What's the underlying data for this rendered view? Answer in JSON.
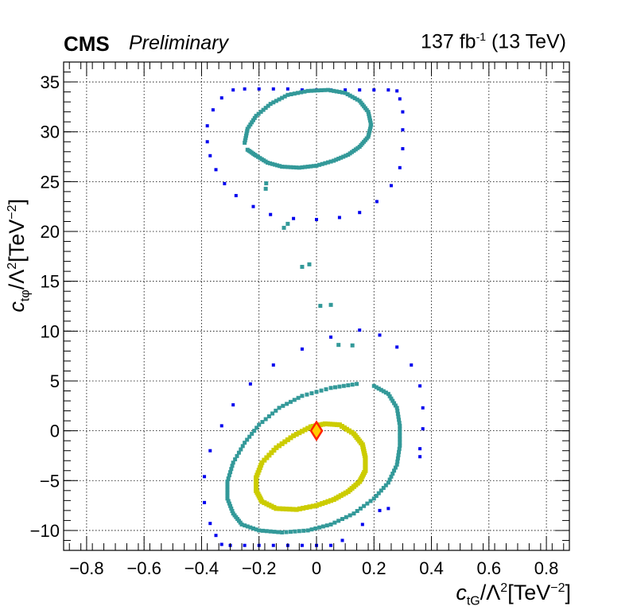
{
  "header": {
    "experiment": "CMS",
    "status": "Preliminary",
    "lumi_value": "137 fb",
    "lumi_exp": "-1",
    "energy": " (13 TeV)"
  },
  "axes": {
    "x_label_main": "c",
    "x_label_sub": "tG",
    "x_label_mid": "/Λ",
    "x_label_pow": "2",
    "x_label_unit": "[TeV",
    "x_label_unit_exp": "−2",
    "x_label_close": "]",
    "y_label_main": "c",
    "y_label_sub": "tφ",
    "y_label_mid": "/Λ",
    "y_label_pow": "2",
    "y_label_unit": "[TeV",
    "y_label_unit_exp": "−2",
    "y_label_close": "]"
  },
  "chart_data": {
    "type": "scatter",
    "xlim": [
      -0.88,
      0.88
    ],
    "ylim": [
      -12,
      37
    ],
    "x_ticks": [
      -0.8,
      -0.6,
      -0.4,
      -0.2,
      0,
      0.2,
      0.4,
      0.6,
      0.8
    ],
    "x_tick_labels": [
      "−0.8",
      "−0.6",
      "−0.4",
      "−0.2",
      "0",
      "0.2",
      "0.4",
      "0.6",
      "0.8"
    ],
    "y_ticks": [
      -10,
      -5,
      0,
      5,
      10,
      15,
      20,
      25,
      30,
      35
    ],
    "y_tick_labels": [
      "−10",
      "−5",
      "0",
      "5",
      "10",
      "15",
      "20",
      "25",
      "30",
      "35"
    ],
    "grid": true,
    "colors": {
      "outer_contour": "#0000ee",
      "middle_contour": "#339999",
      "inner_contour": "#cccc00",
      "best_fit_fill": "#ffcc00",
      "best_fit_edge": "#ff2200"
    },
    "series": [
      {
        "kind": "outer",
        "points": [
          [
            -0.29,
            34.2
          ],
          [
            -0.25,
            34.3
          ],
          [
            -0.2,
            34.3
          ],
          [
            -0.15,
            34.3
          ],
          [
            -0.1,
            34.3
          ],
          [
            -0.05,
            34.2
          ],
          [
            0.0,
            34.2
          ],
          [
            0.05,
            34.2
          ],
          [
            0.1,
            34.2
          ],
          [
            0.15,
            34.2
          ],
          [
            0.2,
            34.2
          ],
          [
            0.25,
            34.2
          ],
          [
            0.28,
            34.1
          ],
          [
            -0.33,
            33.4
          ],
          [
            -0.36,
            32.2
          ],
          [
            -0.38,
            30.6
          ],
          [
            -0.38,
            29.0
          ],
          [
            -0.37,
            27.6
          ],
          [
            -0.35,
            26.2
          ],
          [
            -0.32,
            24.8
          ],
          [
            -0.28,
            23.6
          ],
          [
            -0.22,
            22.5
          ],
          [
            -0.16,
            21.7
          ],
          [
            -0.08,
            21.3
          ],
          [
            0.0,
            21.2
          ],
          [
            0.08,
            21.4
          ],
          [
            0.15,
            21.9
          ],
          [
            0.21,
            23.0
          ],
          [
            0.26,
            24.6
          ],
          [
            0.29,
            26.4
          ],
          [
            0.3,
            28.3
          ],
          [
            0.3,
            30.2
          ],
          [
            0.3,
            32.0
          ],
          [
            0.29,
            33.3
          ],
          [
            0.15,
            10.1
          ],
          [
            0.05,
            9.4
          ],
          [
            -0.05,
            8.2
          ],
          [
            -0.15,
            6.6
          ],
          [
            -0.23,
            4.7
          ],
          [
            -0.29,
            2.6
          ],
          [
            -0.33,
            0.5
          ],
          [
            -0.37,
            -2.0
          ],
          [
            -0.39,
            -4.6
          ],
          [
            -0.39,
            -7.2
          ],
          [
            -0.37,
            -9.3
          ],
          [
            -0.35,
            -10.5
          ],
          [
            -0.33,
            -11.4
          ],
          [
            -0.3,
            -11.5
          ],
          [
            -0.25,
            -11.5
          ],
          [
            -0.2,
            -11.5
          ],
          [
            -0.15,
            -11.5
          ],
          [
            -0.1,
            -11.5
          ],
          [
            -0.05,
            -11.5
          ],
          [
            0.0,
            -11.5
          ],
          [
            0.05,
            -11.5
          ],
          [
            0.09,
            -11.0
          ],
          [
            0.16,
            -9.4
          ],
          [
            0.22,
            -8.0
          ],
          [
            0.25,
            -7.8
          ],
          [
            0.22,
            9.6
          ],
          [
            0.28,
            8.4
          ],
          [
            0.33,
            6.6
          ],
          [
            0.36,
            4.5
          ],
          [
            0.37,
            2.3
          ],
          [
            0.37,
            0.2
          ],
          [
            0.36,
            -1.8
          ],
          [
            0.36,
            -2.6
          ]
        ]
      },
      {
        "kind": "middle",
        "points": [
          [
            -0.25,
            28.9
          ],
          [
            -0.24,
            30.3
          ],
          [
            -0.21,
            31.6
          ],
          [
            -0.16,
            32.8
          ],
          [
            -0.1,
            33.7
          ],
          [
            -0.03,
            34.1
          ],
          [
            0.04,
            34.2
          ],
          [
            0.1,
            33.9
          ],
          [
            0.15,
            33.1
          ],
          [
            0.18,
            32.0
          ],
          [
            0.19,
            30.7
          ],
          [
            0.18,
            29.5
          ],
          [
            0.15,
            28.5
          ],
          [
            0.11,
            27.7
          ],
          [
            0.06,
            27.1
          ],
          [
            0.0,
            26.6
          ],
          [
            -0.06,
            26.4
          ],
          [
            -0.12,
            26.5
          ],
          [
            -0.17,
            26.9
          ],
          [
            -0.21,
            27.6
          ],
          [
            -0.24,
            28.2
          ],
          [
            0.14,
            4.7
          ],
          [
            0.05,
            4.3
          ],
          [
            -0.05,
            3.5
          ],
          [
            -0.13,
            2.3
          ],
          [
            -0.2,
            0.6
          ],
          [
            -0.25,
            -1.2
          ],
          [
            -0.29,
            -3.2
          ],
          [
            -0.31,
            -5.1
          ],
          [
            -0.31,
            -6.8
          ],
          [
            -0.29,
            -8.3
          ],
          [
            -0.26,
            -9.4
          ],
          [
            -0.2,
            -10.0
          ],
          [
            -0.12,
            -10.2
          ],
          [
            -0.03,
            -10.0
          ],
          [
            0.05,
            -9.4
          ],
          [
            0.13,
            -8.3
          ],
          [
            0.2,
            -6.8
          ],
          [
            0.25,
            -5.2
          ],
          [
            0.28,
            -3.4
          ],
          [
            0.29,
            -1.5
          ],
          [
            0.29,
            0.5
          ],
          [
            0.28,
            2.3
          ],
          [
            0.25,
            3.7
          ],
          [
            0.2,
            4.5
          ]
        ]
      },
      {
        "kind": "inner",
        "points": [
          [
            -0.02,
            0.4
          ],
          [
            -0.08,
            -0.5
          ],
          [
            -0.14,
            -1.7
          ],
          [
            -0.19,
            -3.2
          ],
          [
            -0.21,
            -4.7
          ],
          [
            -0.21,
            -6.0
          ],
          [
            -0.19,
            -7.1
          ],
          [
            -0.14,
            -7.8
          ],
          [
            -0.07,
            -7.9
          ],
          [
            0.0,
            -7.5
          ],
          [
            0.06,
            -6.9
          ],
          [
            0.11,
            -6.1
          ],
          [
            0.15,
            -5.1
          ],
          [
            0.17,
            -4.0
          ],
          [
            0.17,
            -2.7
          ],
          [
            0.16,
            -1.4
          ],
          [
            0.13,
            -0.3
          ],
          [
            0.08,
            0.6
          ],
          [
            0.03,
            0.7
          ]
        ]
      }
    ],
    "best_fit": [
      0,
      0
    ]
  }
}
